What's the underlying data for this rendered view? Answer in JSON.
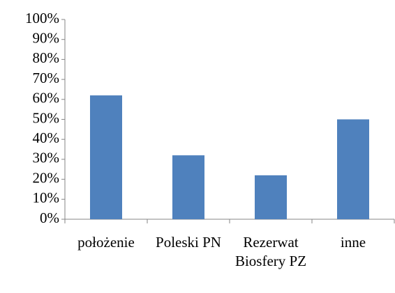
{
  "chart_data": {
    "type": "bar",
    "categories": [
      "położenie",
      "Poleski PN",
      "Rezerwat Biosfery PZ",
      "inne"
    ],
    "values": [
      62,
      32,
      22,
      50
    ],
    "color": "#4f81bd",
    "ylim": [
      0,
      100
    ],
    "yticks": [
      {
        "value": 0,
        "label": "0%"
      },
      {
        "value": 10,
        "label": "10%"
      },
      {
        "value": 20,
        "label": "20%"
      },
      {
        "value": 30,
        "label": "30%"
      },
      {
        "value": 40,
        "label": "40%"
      },
      {
        "value": 50,
        "label": "50%"
      },
      {
        "value": 60,
        "label": "60%"
      },
      {
        "value": 70,
        "label": "70%"
      },
      {
        "value": 80,
        "label": "80%"
      },
      {
        "value": 90,
        "label": "90%"
      },
      {
        "value": 100,
        "label": "100%"
      }
    ],
    "grid": false
  }
}
